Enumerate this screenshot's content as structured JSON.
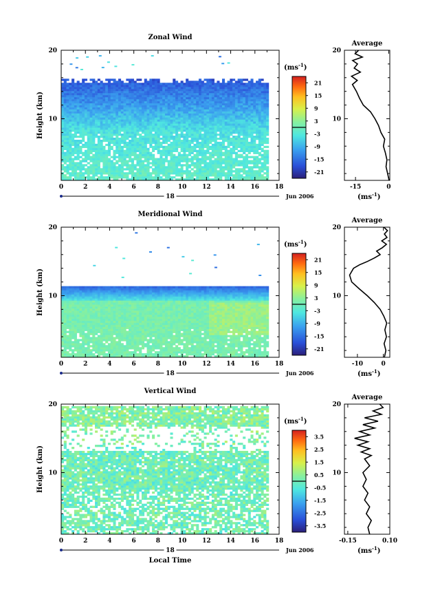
{
  "chart_data": [
    {
      "type": "heatmap",
      "title": "Zonal Wind",
      "ylabel": "Height (km)",
      "xlim": [
        0,
        18
      ],
      "ylim": [
        1,
        20
      ],
      "xticks": [
        "0",
        "2",
        "4",
        "6",
        "8",
        "10",
        "12",
        "14",
        "16",
        "18"
      ],
      "yticks": [
        "20",
        "10"
      ],
      "day_label": "18",
      "date_label": "Jun 2006",
      "colorbar": {
        "unit": "(ms",
        "unit_exp": "-1",
        "unit_close": ")",
        "ticks": [
          "21",
          "15",
          "9",
          "3",
          "-3",
          "-9",
          "-15",
          "-21"
        ],
        "range": [
          -24,
          24
        ]
      },
      "field": {
        "kind": "zonal",
        "data_end_hour": 17,
        "top_km": 15.7
      },
      "average": {
        "title": "Average",
        "xlabel": "(ms",
        "xlabel_exp": "-1",
        "xlabel_close": ")",
        "xticks": [
          -15,
          0
        ],
        "xlim": [
          -20,
          0.5
        ],
        "profile": [
          [
            1,
            0.2
          ],
          [
            2,
            -0.5
          ],
          [
            3,
            -1.2
          ],
          [
            4,
            -0.8
          ],
          [
            5,
            -1.5
          ],
          [
            6,
            -2.4
          ],
          [
            7,
            -1.8
          ],
          [
            8,
            -3.5
          ],
          [
            9,
            -4.6
          ],
          [
            10,
            -6.2
          ],
          [
            11,
            -8.2
          ],
          [
            12,
            -11.5
          ],
          [
            13,
            -13.2
          ],
          [
            14,
            -14.6
          ],
          [
            15,
            -16.4
          ],
          [
            15.6,
            -14.2
          ],
          [
            16.2,
            -16.8
          ],
          [
            16.8,
            -12.8
          ],
          [
            17.4,
            -15.6
          ],
          [
            18,
            -14.1
          ],
          [
            18.5,
            -16.3
          ],
          [
            19,
            -11.9
          ],
          [
            19.5,
            -15.2
          ],
          [
            20,
            -13.6
          ]
        ]
      }
    },
    {
      "type": "heatmap",
      "title": "Meridional Wind",
      "ylabel": "Height (km)",
      "xlim": [
        0,
        18
      ],
      "ylim": [
        1,
        20
      ],
      "xticks": [
        "0",
        "2",
        "4",
        "6",
        "8",
        "10",
        "12",
        "14",
        "16",
        "18"
      ],
      "yticks": [
        "20",
        "10"
      ],
      "day_label": "18",
      "date_label": "Jun 2006",
      "colorbar": {
        "unit": "(ms",
        "unit_exp": "-1",
        "unit_close": ")",
        "ticks": [
          "21",
          "15",
          "9",
          "3",
          "-3",
          "-9",
          "-15",
          "-21"
        ],
        "range": [
          -24,
          24
        ]
      },
      "field": {
        "kind": "meridional",
        "data_end_hour": 17,
        "top_km": 11.2
      },
      "average": {
        "title": "Average",
        "xlabel": "(ms",
        "xlabel_exp": "-1",
        "xlabel_close": ")",
        "xticks": [
          -10,
          0
        ],
        "xlim": [
          -15,
          2.5
        ],
        "profile": [
          [
            1,
            0.4
          ],
          [
            2,
            1.0
          ],
          [
            3,
            0.3
          ],
          [
            4,
            1.2
          ],
          [
            5,
            0.6
          ],
          [
            6,
            1.3
          ],
          [
            7,
            0.2
          ],
          [
            8,
            -1.2
          ],
          [
            9,
            -3.5
          ],
          [
            10,
            -6.2
          ],
          [
            11,
            -9.3
          ],
          [
            12,
            -12.2
          ],
          [
            13,
            -13.0
          ],
          [
            14,
            -11.5
          ],
          [
            14.5,
            -9.2
          ],
          [
            15,
            -6.1
          ],
          [
            15.5,
            -3.5
          ],
          [
            16,
            -1.2
          ],
          [
            16.5,
            -2.6
          ],
          [
            17,
            -0.4
          ],
          [
            17.5,
            1.2
          ],
          [
            18,
            -0.6
          ],
          [
            18.5,
            1.4
          ],
          [
            19,
            0.4
          ],
          [
            19.5,
            1.6
          ],
          [
            20,
            0.2
          ]
        ]
      }
    },
    {
      "type": "heatmap",
      "title": "Vertical Wind",
      "xlabel": "Local Time",
      "ylabel": "Height (km)",
      "xlim": [
        0,
        18
      ],
      "ylim": [
        1,
        20
      ],
      "xticks": [
        "0",
        "2",
        "4",
        "6",
        "8",
        "10",
        "12",
        "14",
        "16",
        "18"
      ],
      "yticks": [
        "20",
        "10"
      ],
      "day_label": "18",
      "date_label": "Jun 2006",
      "colorbar": {
        "unit": "(ms",
        "unit_exp": "-1",
        "unit_close": ")",
        "ticks": [
          "3.5",
          "2.5",
          "1.5",
          "0.5",
          "-0.5",
          "-1.5",
          "-2.5",
          "-3.5"
        ],
        "range": [
          -4,
          4
        ]
      },
      "field": {
        "kind": "vertical",
        "data_end_hour": 17,
        "top_km": 19.5
      },
      "average": {
        "title": "Average",
        "xlabel": "(ms",
        "xlabel_exp": "-1",
        "xlabel_close": ")",
        "xticks": [
          -0.15,
          0.1
        ],
        "xticks_text": [
          "-0.15",
          "0.10"
        ],
        "xlim": [
          -0.17,
          0.1
        ],
        "profile": [
          [
            1,
            -0.02
          ],
          [
            2,
            -0.03
          ],
          [
            3,
            -0.01
          ],
          [
            4,
            -0.04
          ],
          [
            5,
            -0.02
          ],
          [
            6,
            -0.05
          ],
          [
            7,
            -0.03
          ],
          [
            8,
            -0.06
          ],
          [
            9,
            -0.04
          ],
          [
            10,
            -0.06
          ],
          [
            11,
            -0.02
          ],
          [
            12,
            -0.05
          ],
          [
            12.5,
            -0.01
          ],
          [
            13,
            -0.07
          ],
          [
            13.5,
            -0.02
          ],
          [
            14,
            -0.09
          ],
          [
            14.5,
            -0.03
          ],
          [
            15,
            -0.11
          ],
          [
            15.5,
            -0.02
          ],
          [
            16,
            -0.08
          ],
          [
            16.5,
            0.01
          ],
          [
            17,
            -0.06
          ],
          [
            17.5,
            0.03
          ],
          [
            18,
            -0.05
          ],
          [
            18.5,
            0.05
          ],
          [
            19,
            0.0
          ],
          [
            19.5,
            0.06
          ],
          [
            20,
            0.04
          ]
        ]
      }
    }
  ]
}
